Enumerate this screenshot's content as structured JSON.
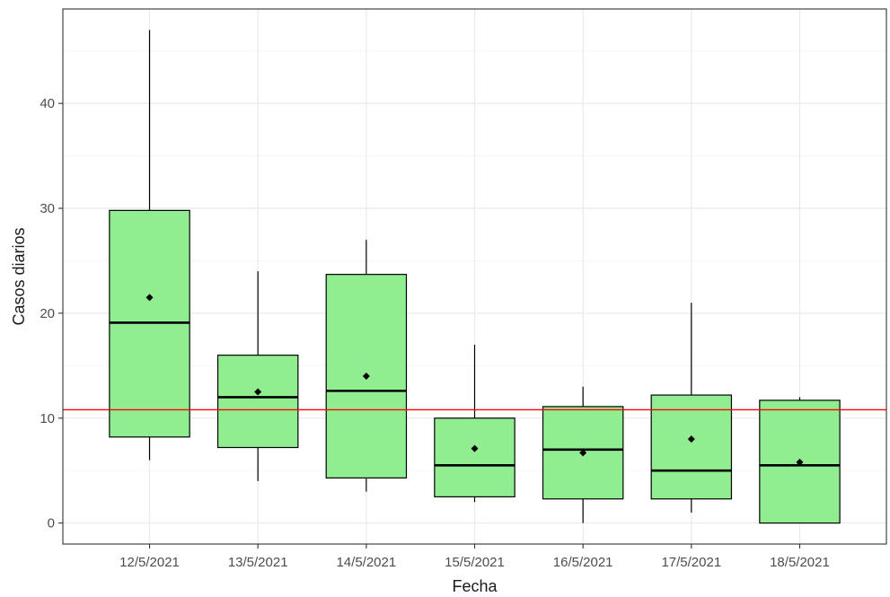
{
  "chart_data": {
    "type": "boxplot",
    "xlabel": "Fecha",
    "ylabel": "Casos diarios",
    "ylim": [
      -2,
      49
    ],
    "yticks": [
      0,
      10,
      20,
      30,
      40
    ],
    "grid": true,
    "colors": {
      "box_fill": "#90ee90",
      "box_stroke": "#000000",
      "reference_line": "#ff0000",
      "grid_major": "#ebebeb",
      "grid_minor": "#f5f5f5"
    },
    "reference_line": 10.8,
    "categories": [
      "12/5/2021",
      "13/5/2021",
      "14/5/2021",
      "15/5/2021",
      "16/5/2021",
      "17/5/2021",
      "18/5/2021"
    ],
    "boxes": [
      {
        "min": 6,
        "q1": 8.2,
        "median": 19.1,
        "q3": 29.8,
        "max": 47,
        "mean": 21.5
      },
      {
        "min": 4,
        "q1": 7.2,
        "median": 12,
        "q3": 16,
        "max": 24,
        "mean": 12.5
      },
      {
        "min": 3,
        "q1": 4.3,
        "median": 12.6,
        "q3": 23.7,
        "max": 27,
        "mean": 14
      },
      {
        "min": 2,
        "q1": 2.5,
        "median": 5.5,
        "q3": 10,
        "max": 17,
        "mean": 7.1
      },
      {
        "min": 0,
        "q1": 2.3,
        "median": 7,
        "q3": 11.1,
        "max": 13,
        "mean": 6.7
      },
      {
        "min": 1,
        "q1": 2.3,
        "median": 5,
        "q3": 12.2,
        "max": 21,
        "mean": 8
      },
      {
        "min": 0,
        "q1": 0,
        "median": 5.5,
        "q3": 11.7,
        "max": 12,
        "mean": 5.8
      }
    ]
  }
}
